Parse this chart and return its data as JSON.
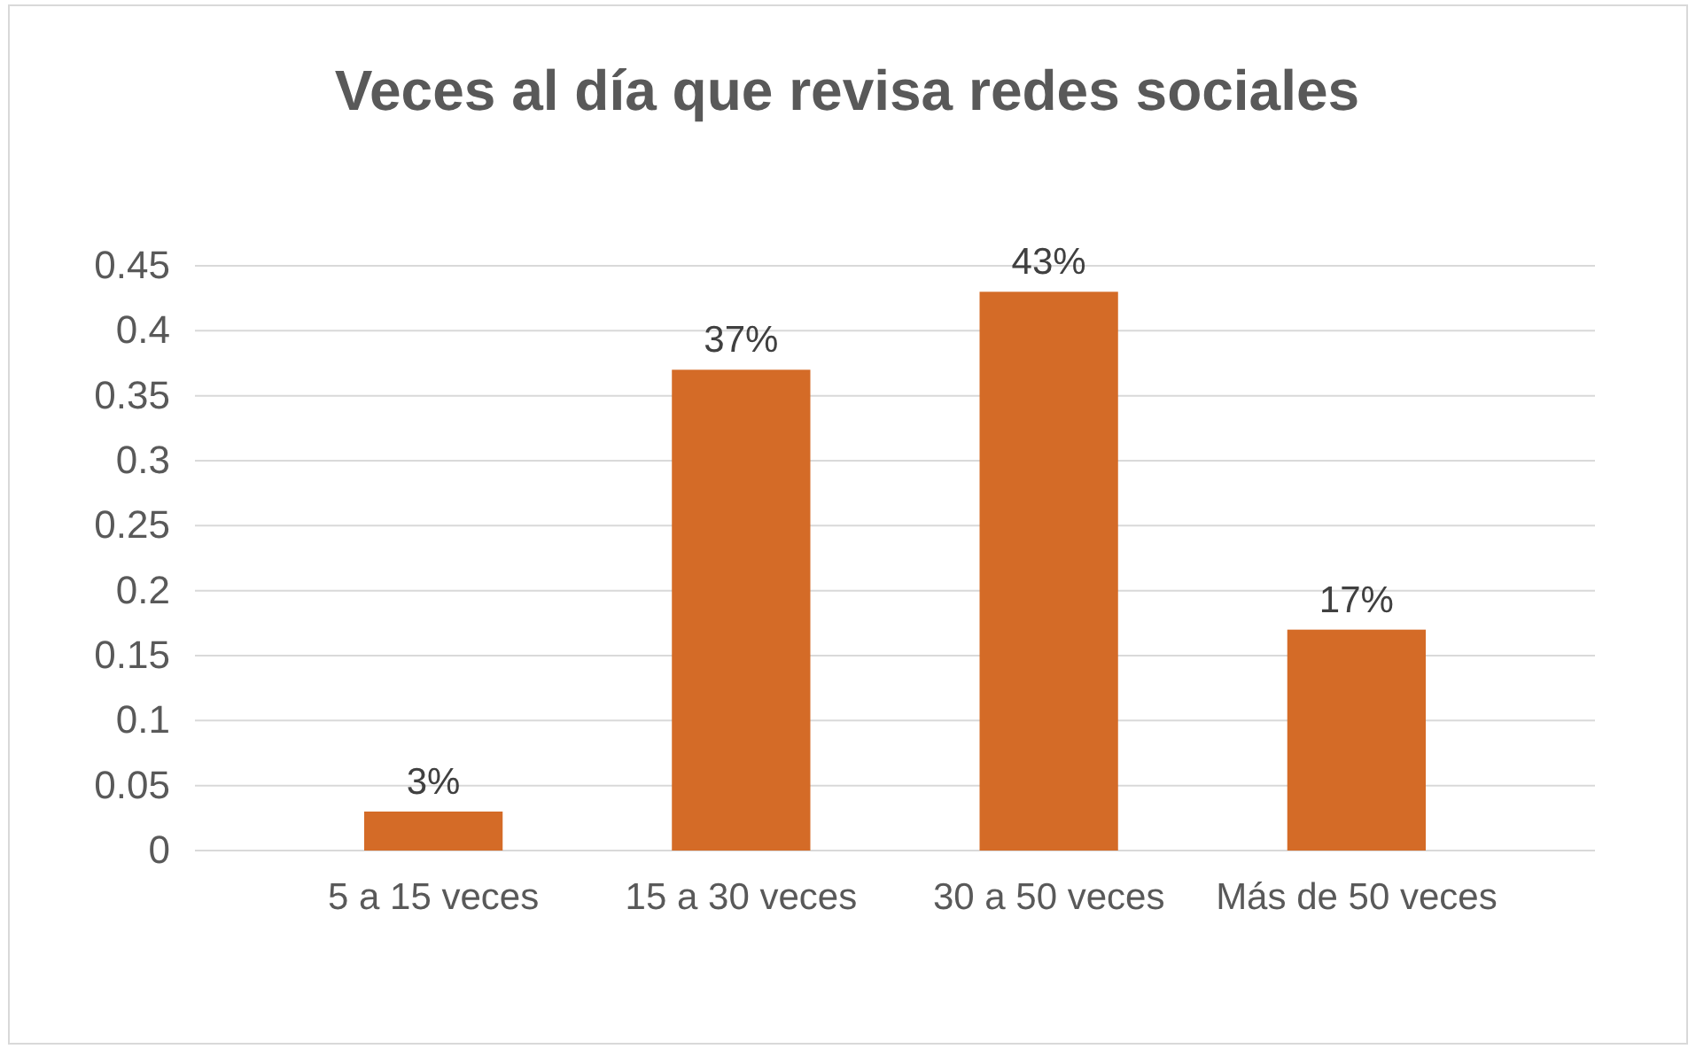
{
  "chart_data": {
    "type": "bar",
    "title": "Veces al día que revisa redes sociales",
    "categories": [
      "5 a 15 veces",
      "15 a 30 veces",
      "30 a 50 veces",
      "Más de 50 veces"
    ],
    "values": [
      0.03,
      0.37,
      0.43,
      0.17
    ],
    "value_labels": [
      "3%",
      "37%",
      "43%",
      "17%"
    ],
    "color": "#d46b27",
    "ylim": [
      0,
      0.45
    ],
    "yticks": [
      0,
      0.05,
      0.1,
      0.15,
      0.2,
      0.25,
      0.3,
      0.35,
      0.4,
      0.45
    ],
    "grid": true
  }
}
